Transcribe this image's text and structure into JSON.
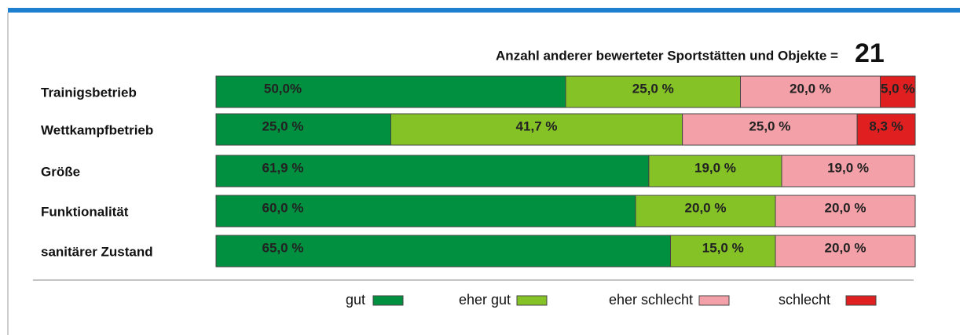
{
  "chart_data": {
    "type": "stacked-barh",
    "annotation": "Anzahl anderer bewerteter  Sportstätten und Objekte =",
    "annotation_value": 21,
    "categories": [
      "Trainigsbetrieb",
      "Wettkampfbetrieb",
      "Größe",
      "Funktionalität",
      "sanitärer Zustand"
    ],
    "xlim": [
      0,
      100
    ],
    "series": [
      {
        "name": "gut",
        "color": "#009040",
        "values": [
          50.0,
          25.0,
          61.9,
          60.0,
          65.0
        ],
        "value_labels": [
          "50,0%",
          "25,0 %",
          "61,9 %",
          "60,0 %",
          "65,0 %"
        ]
      },
      {
        "name": "eher gut",
        "color": "#84c225",
        "values": [
          25.0,
          41.7,
          19.0,
          20.0,
          15.0
        ],
        "value_labels": [
          "25,0 %",
          "41,7 %",
          "19,0 %",
          "20,0 %",
          "15,0 %"
        ]
      },
      {
        "name": "eher schlecht",
        "color": "#f4a0a8",
        "values": [
          20.0,
          25.0,
          19.0,
          20.0,
          20.0
        ],
        "value_labels": [
          "20,0 %",
          "25,0 %",
          "19,0 %",
          "20,0 %",
          "20,0 %"
        ]
      },
      {
        "name": "schlecht",
        "color": "#e02020",
        "values": [
          5.0,
          8.3,
          null,
          null,
          null
        ],
        "value_labels": [
          "5,0 %",
          "8,3 %",
          null,
          null,
          null
        ]
      }
    ]
  }
}
